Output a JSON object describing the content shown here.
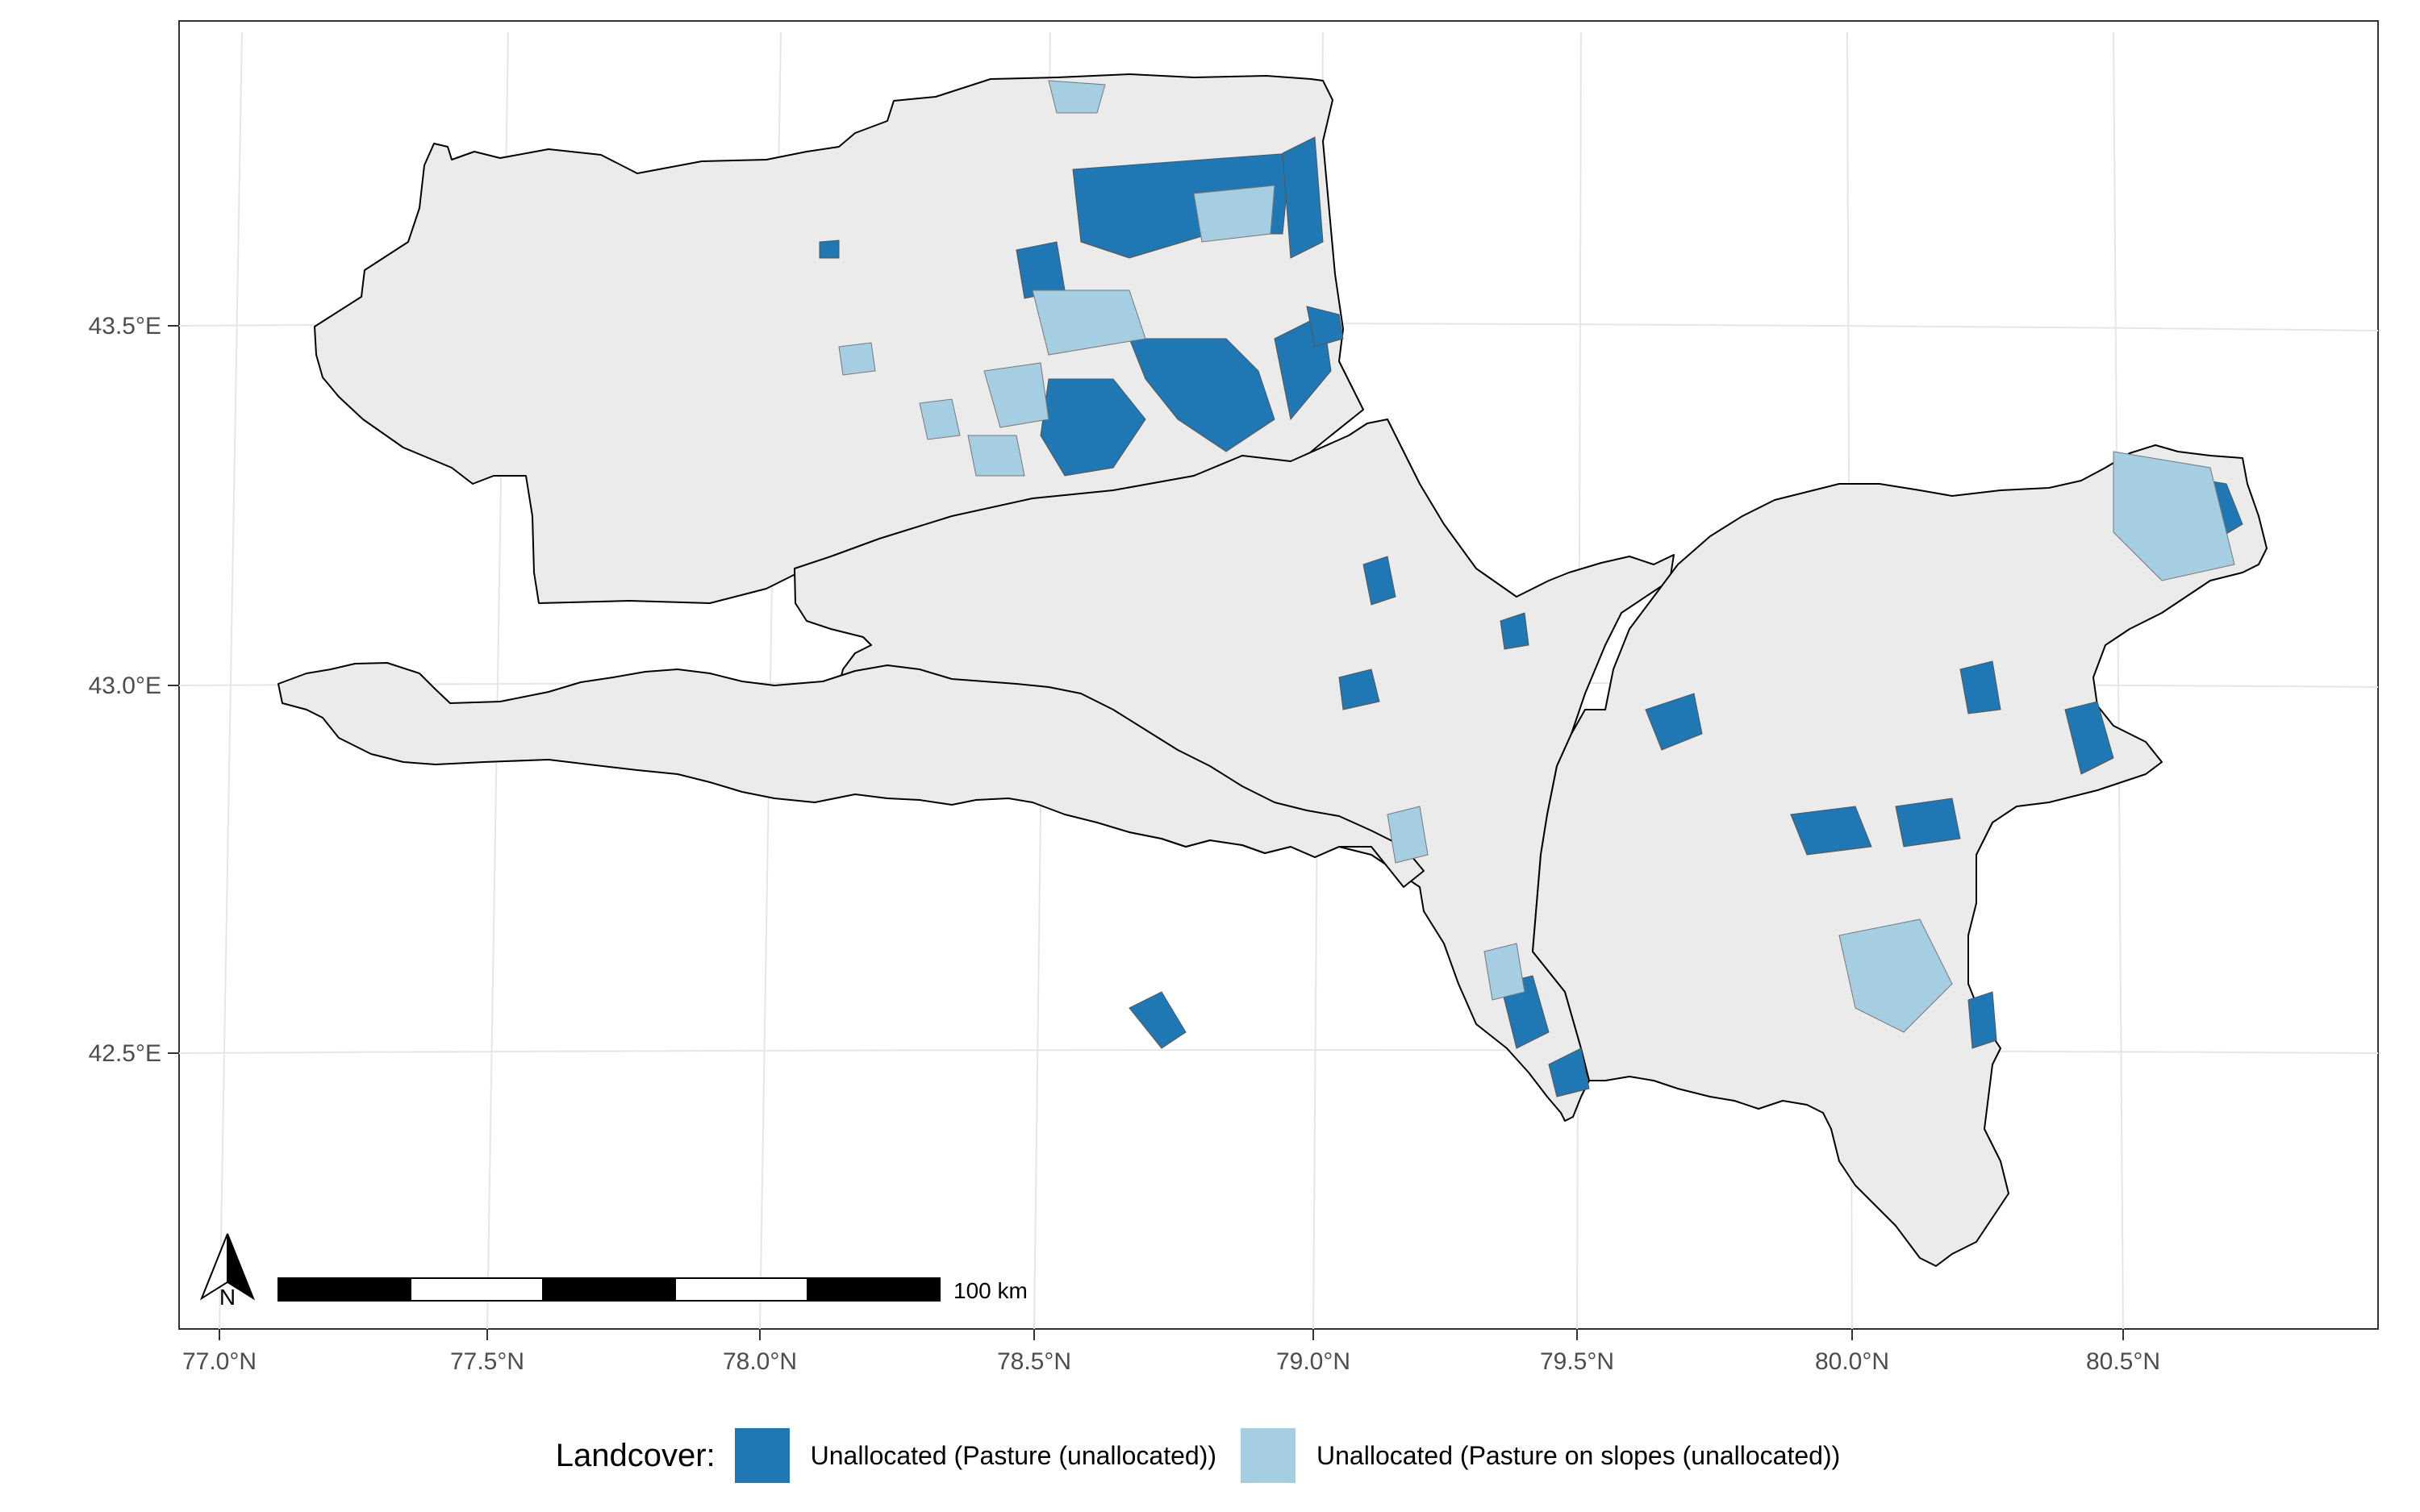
{
  "map": {
    "x_ticks": [
      "77.0°N",
      "77.5°N",
      "78.0°N",
      "78.5°N",
      "79.0°N",
      "79.5°N",
      "80.0°N",
      "80.5°N"
    ],
    "y_ticks": [
      "43.5°E",
      "43.0°E",
      "42.5°E"
    ],
    "scale_bar_label": "100 km",
    "north_arrow_label": "N",
    "colors": {
      "region_fill": "#ebebeb",
      "boundary": "#000000",
      "pasture": "#1f78b4",
      "pasture_slopes": "#a6cee3",
      "grid": "#e6e6e6"
    }
  },
  "legend": {
    "title": "Landcover:",
    "items": [
      {
        "label": "Unallocated (Pasture (unallocated))",
        "color": "#1f78b4"
      },
      {
        "label": "Unallocated (Pasture on slopes (unallocated))",
        "color": "#a6cee3"
      }
    ]
  }
}
